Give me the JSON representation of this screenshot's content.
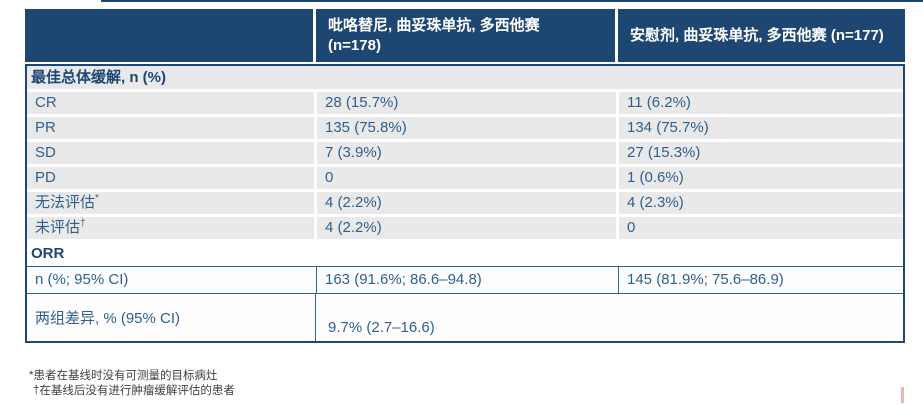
{
  "colors": {
    "header_bg": "#1e4673",
    "header_text": "#ffffff",
    "row_bg": "#e9e9e9",
    "row_text": "#31608f",
    "section_text": "#1e4673",
    "outer_border": "#1e4673",
    "inner_border": "#35618f",
    "footnote_text": "#3f3f3f",
    "corner_marker": "#dd9180"
  },
  "table": {
    "header": {
      "col1": "",
      "col2_line1": "吡咯替尼, 曲妥珠单抗, 多西他赛",
      "col2_line2": "(n=178)",
      "col3": "安慰剂, 曲妥珠单抗, 多西他赛 (n=177)"
    },
    "section_best_response": "最佳总体缓解, n (%)",
    "rows": [
      {
        "label": "CR",
        "sup": "",
        "v1": "28 (15.7%)",
        "v2": "11 (6.2%)"
      },
      {
        "label": "PR",
        "sup": "",
        "v1": "135 (75.8%)",
        "v2": "134 (75.7%)"
      },
      {
        "label": "SD",
        "sup": "",
        "v1": "7 (3.9%)",
        "v2": "27 (15.3%)"
      },
      {
        "label": "PD",
        "sup": "",
        "v1": "0",
        "v2": "1 (0.6%)"
      },
      {
        "label": "无法评估",
        "sup": "*",
        "v1": "4 (2.2%)",
        "v2": "4 (2.3%)"
      },
      {
        "label": "未评估",
        "sup": "†",
        "v1": "4 (2.2%)",
        "v2": "0"
      }
    ],
    "section_orr": "ORR",
    "orr_ci_row": {
      "label": "n (%; 95% CI)",
      "v1": "163 (91.6%; 86.6–94.8)",
      "v2": "145 (81.9%; 75.6–86.9)"
    },
    "diff_row": {
      "label": "两组差异, % (95% CI)",
      "v1": "9.7% (2.7–16.6)",
      "v2": ""
    }
  },
  "footnotes": [
    "*患者在基线时没有可测量的目标病灶",
    "†在基线后没有进行肿瘤缓解评估的患者"
  ]
}
